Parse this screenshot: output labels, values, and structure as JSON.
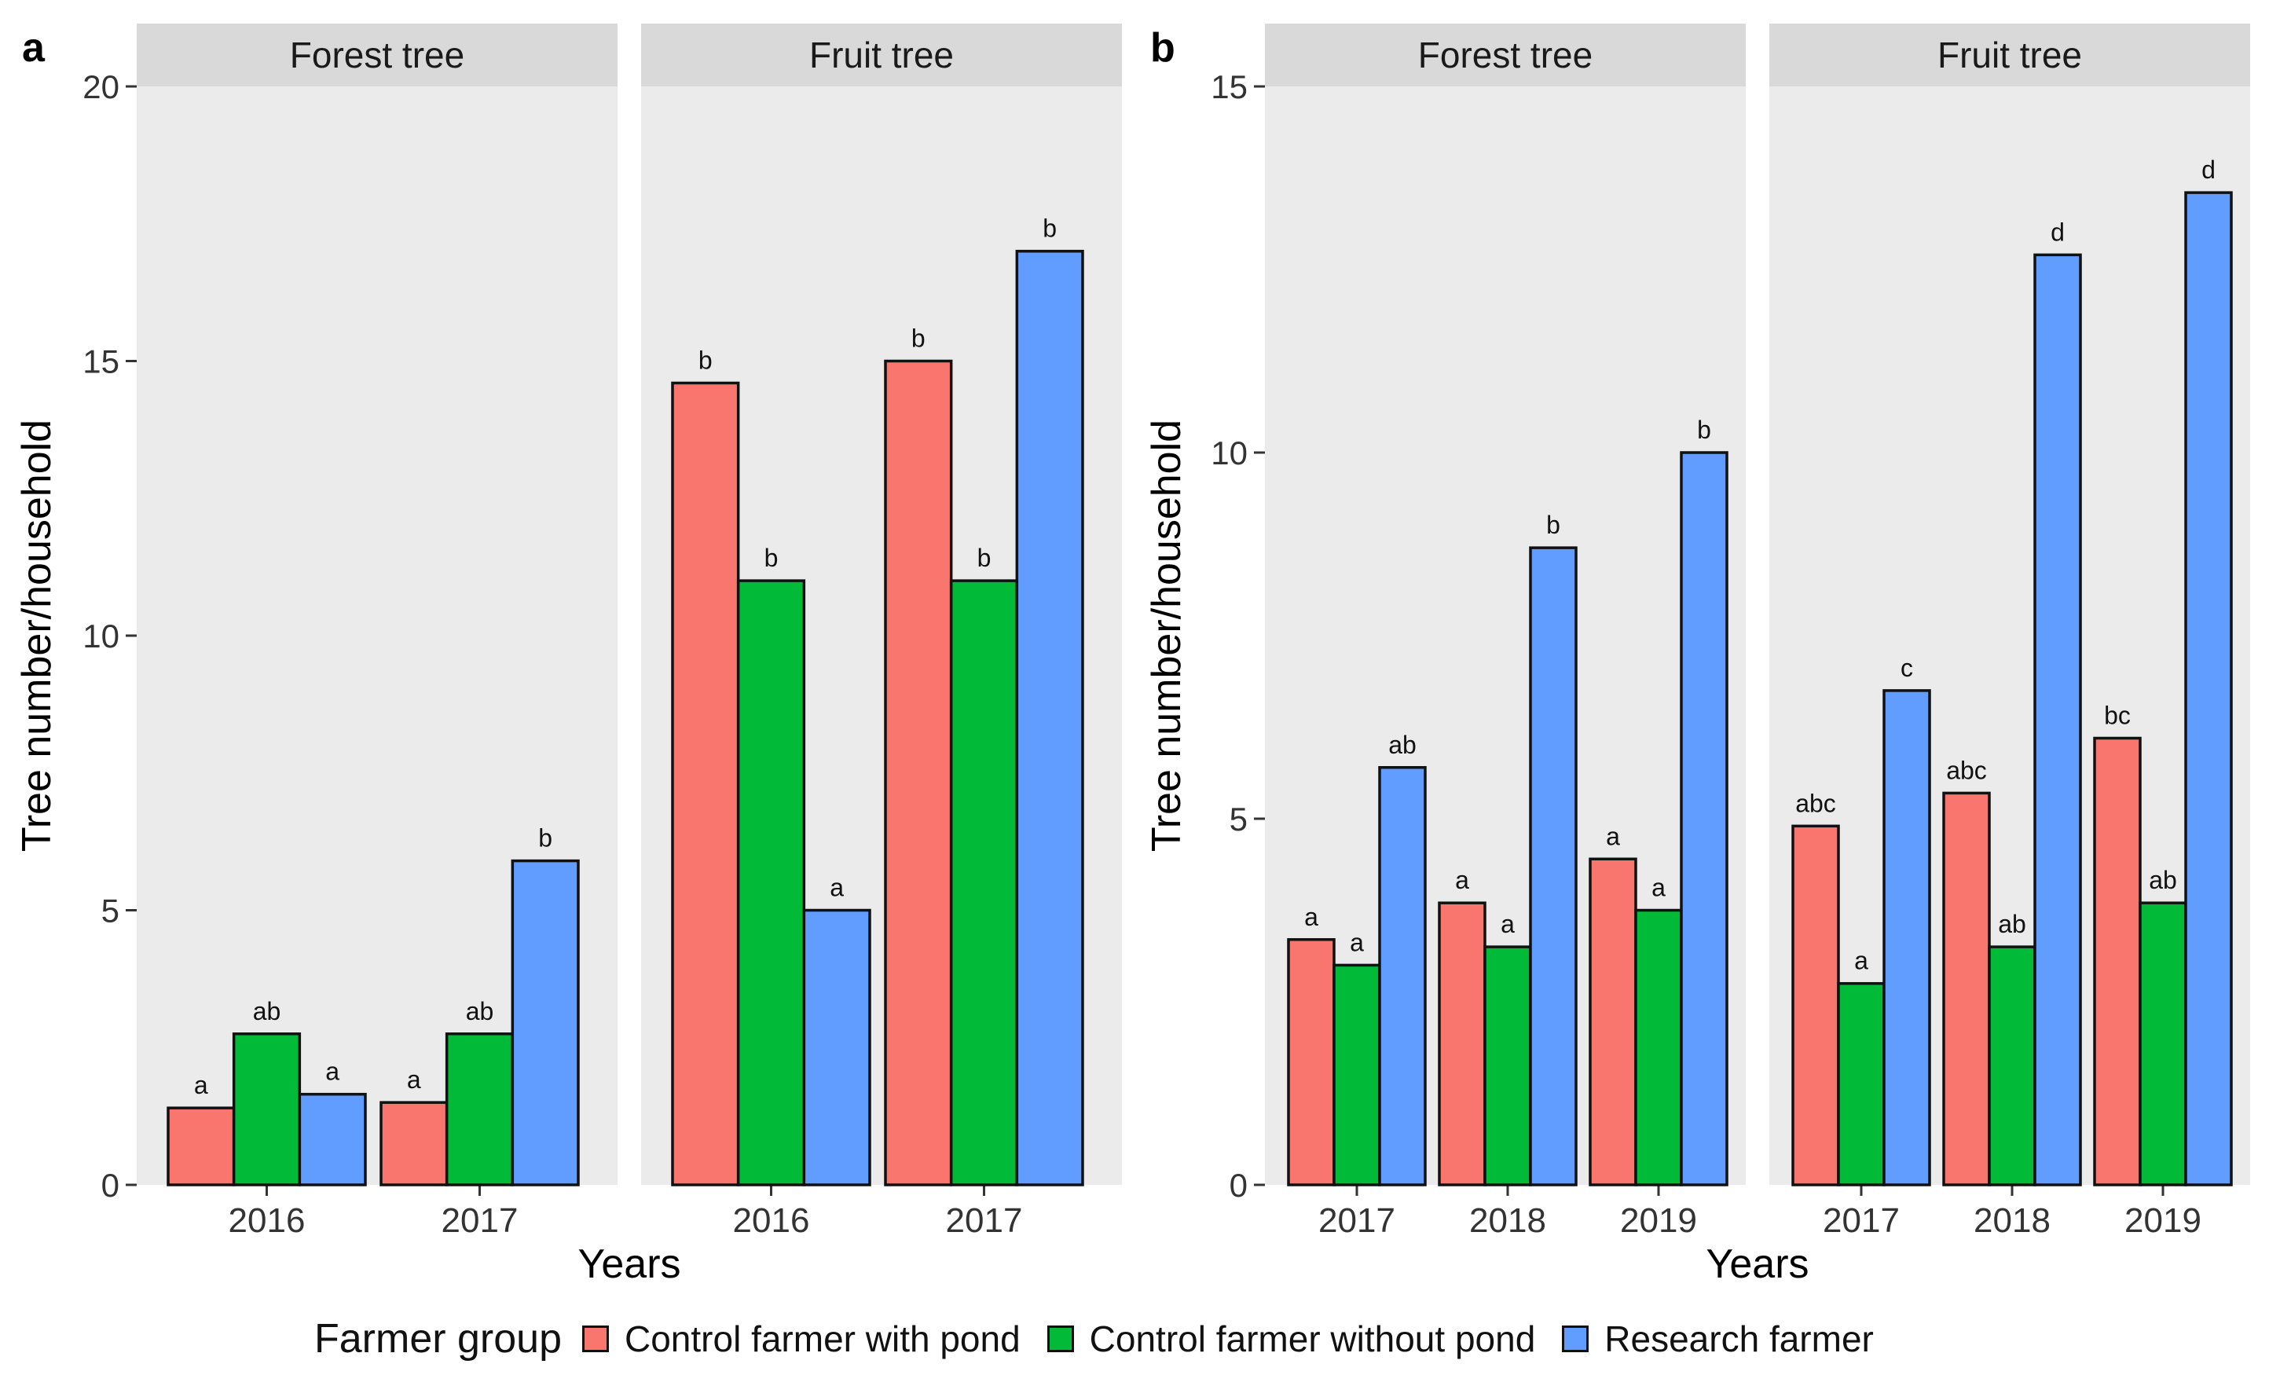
{
  "colors": {
    "control_with_pond": "#F8766D",
    "control_without_pond": "#00BA38",
    "research_farmer": "#619CFF",
    "panel_bg": "#EBEBEB",
    "strip_bg": "#D9D9D9"
  },
  "legend": {
    "title": "Farmer group",
    "items": [
      {
        "label": "Control farmer with pond",
        "color_key": "control_with_pond"
      },
      {
        "label": "Control farmer without pond",
        "color_key": "control_without_pond"
      },
      {
        "label": "Research farmer",
        "color_key": "research_farmer"
      }
    ]
  },
  "chart_data": [
    {
      "type": "bar",
      "panel_label": "a",
      "xlabel": "Years",
      "ylabel": "Tree number/household",
      "ylim": [
        0,
        20
      ],
      "yticks": [
        0,
        5,
        10,
        15,
        20
      ],
      "series_names": [
        "Control farmer with pond",
        "Control farmer without pond",
        "Research farmer"
      ],
      "facets": [
        {
          "title": "Forest tree",
          "categories": [
            "2016",
            "2017"
          ],
          "series": [
            {
              "name": "Control farmer with pond",
              "values": [
                1.4,
                1.5
              ],
              "letters": [
                "a",
                "a"
              ]
            },
            {
              "name": "Control farmer without pond",
              "values": [
                2.75,
                2.75
              ],
              "letters": [
                "ab",
                "ab"
              ]
            },
            {
              "name": "Research farmer",
              "values": [
                1.65,
                5.9
              ],
              "letters": [
                "a",
                "b"
              ]
            }
          ]
        },
        {
          "title": "Fruit tree",
          "categories": [
            "2016",
            "2017"
          ],
          "series": [
            {
              "name": "Control farmer with pond",
              "values": [
                14.6,
                15.0
              ],
              "letters": [
                "b",
                "b"
              ]
            },
            {
              "name": "Control farmer without pond",
              "values": [
                11.0,
                11.0
              ],
              "letters": [
                "b",
                "b"
              ]
            },
            {
              "name": "Research farmer",
              "values": [
                5.0,
                17.0
              ],
              "letters": [
                "a",
                "b"
              ]
            }
          ]
        }
      ]
    },
    {
      "type": "bar",
      "panel_label": "b",
      "xlabel": "Years",
      "ylabel": "Tree number/household",
      "ylim": [
        0,
        15
      ],
      "yticks": [
        0,
        5,
        10,
        15
      ],
      "series_names": [
        "Control farmer with pond",
        "Control farmer without pond",
        "Research farmer"
      ],
      "facets": [
        {
          "title": "Forest tree",
          "categories": [
            "2017",
            "2018",
            "2019"
          ],
          "series": [
            {
              "name": "Control farmer with pond",
              "values": [
                3.35,
                3.85,
                4.45
              ],
              "letters": [
                "a",
                "a",
                "a"
              ]
            },
            {
              "name": "Control farmer without pond",
              "values": [
                3.0,
                3.25,
                3.75
              ],
              "letters": [
                "a",
                "a",
                "a"
              ]
            },
            {
              "name": "Research farmer",
              "values": [
                5.7,
                8.7,
                10.0
              ],
              "letters": [
                "ab",
                "b",
                "b"
              ]
            }
          ]
        },
        {
          "title": "Fruit tree",
          "categories": [
            "2017",
            "2018",
            "2019"
          ],
          "series": [
            {
              "name": "Control farmer with pond",
              "values": [
                4.9,
                5.35,
                6.1
              ],
              "letters": [
                "abc",
                "abc",
                "bc"
              ]
            },
            {
              "name": "Control farmer without pond",
              "values": [
                2.75,
                3.25,
                3.85
              ],
              "letters": [
                "a",
                "ab",
                "ab"
              ]
            },
            {
              "name": "Research farmer",
              "values": [
                6.75,
                12.7,
                13.55
              ],
              "letters": [
                "c",
                "d",
                "d"
              ]
            }
          ]
        }
      ]
    }
  ]
}
